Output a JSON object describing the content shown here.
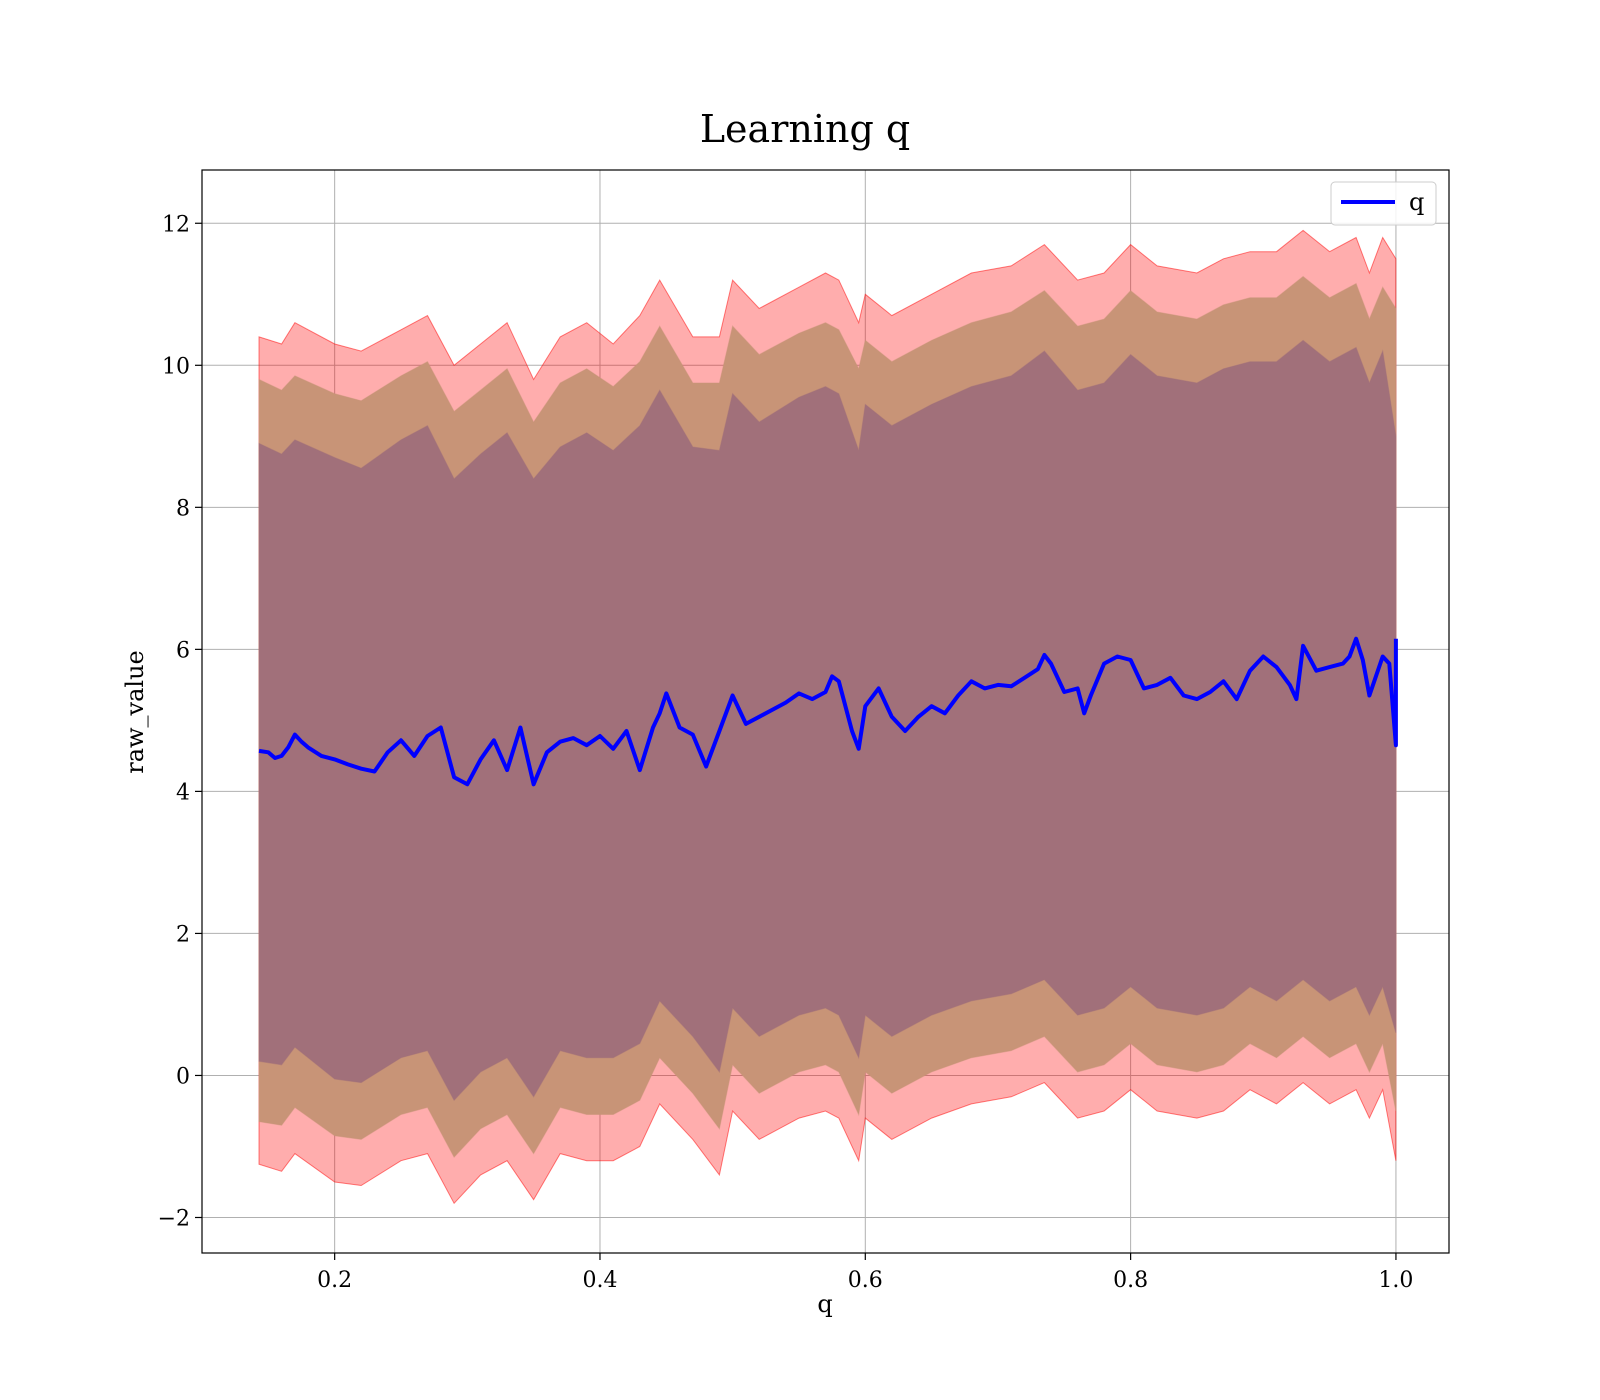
{
  "chart_data": {
    "type": "line",
    "title": "Learning q",
    "xlabel": "q",
    "ylabel": "raw_value",
    "xlim": [
      0.1,
      1.04
    ],
    "ylim": [
      -2.5,
      12.75
    ],
    "xticks": [
      0.2,
      0.4,
      0.6,
      0.8,
      1.0
    ],
    "xtick_labels": [
      "0.2",
      "0.4",
      "0.6",
      "0.8",
      "1.0"
    ],
    "yticks": [
      -2,
      0,
      2,
      4,
      6,
      8,
      10,
      12
    ],
    "ytick_labels": [
      "−2",
      "0",
      "2",
      "4",
      "6",
      "8",
      "10",
      "12"
    ],
    "grid": true,
    "legend_position": "top-right",
    "series": [
      {
        "name": "q",
        "color": "#0000ff",
        "x": [
          0.143,
          0.15,
          0.155,
          0.16,
          0.165,
          0.17,
          0.175,
          0.18,
          0.19,
          0.2,
          0.21,
          0.22,
          0.23,
          0.24,
          0.25,
          0.26,
          0.27,
          0.28,
          0.29,
          0.3,
          0.31,
          0.32,
          0.33,
          0.34,
          0.35,
          0.36,
          0.37,
          0.38,
          0.39,
          0.4,
          0.41,
          0.42,
          0.43,
          0.44,
          0.445,
          0.45,
          0.46,
          0.47,
          0.48,
          0.49,
          0.5,
          0.51,
          0.52,
          0.53,
          0.54,
          0.55,
          0.56,
          0.57,
          0.575,
          0.58,
          0.59,
          0.595,
          0.6,
          0.61,
          0.62,
          0.63,
          0.64,
          0.65,
          0.66,
          0.67,
          0.68,
          0.69,
          0.7,
          0.71,
          0.72,
          0.73,
          0.735,
          0.74,
          0.75,
          0.76,
          0.765,
          0.77,
          0.78,
          0.79,
          0.8,
          0.81,
          0.82,
          0.83,
          0.84,
          0.85,
          0.86,
          0.87,
          0.88,
          0.89,
          0.9,
          0.91,
          0.92,
          0.925,
          0.93,
          0.94,
          0.95,
          0.96,
          0.965,
          0.97,
          0.975,
          0.98,
          0.99,
          0.995,
          1.0,
          1.0
        ],
        "values": [
          4.57,
          4.55,
          4.47,
          4.5,
          4.62,
          4.8,
          4.7,
          4.62,
          4.5,
          4.45,
          4.38,
          4.32,
          4.28,
          4.55,
          4.72,
          4.5,
          4.78,
          4.9,
          4.2,
          4.1,
          4.45,
          4.72,
          4.3,
          4.9,
          4.1,
          4.55,
          4.7,
          4.75,
          4.65,
          4.78,
          4.6,
          4.85,
          4.3,
          4.9,
          5.1,
          5.38,
          4.9,
          4.8,
          4.35,
          4.85,
          5.35,
          4.95,
          5.05,
          5.15,
          5.25,
          5.38,
          5.3,
          5.4,
          5.62,
          5.55,
          4.85,
          4.6,
          5.2,
          5.45,
          5.05,
          4.85,
          5.05,
          5.2,
          5.1,
          5.35,
          5.55,
          5.45,
          5.5,
          5.48,
          5.6,
          5.72,
          5.92,
          5.8,
          5.4,
          5.45,
          5.1,
          5.35,
          5.8,
          5.9,
          5.85,
          5.45,
          5.5,
          5.6,
          5.35,
          5.3,
          5.4,
          5.55,
          5.3,
          5.7,
          5.9,
          5.75,
          5.5,
          5.3,
          6.05,
          5.7,
          5.75,
          5.8,
          5.9,
          6.15,
          5.85,
          5.35,
          5.9,
          5.8,
          4.65,
          6.15
        ]
      }
    ],
    "bands": [
      {
        "color": "#ff0000",
        "opacity": 0.32,
        "x": [
          0.143,
          0.16,
          0.17,
          0.2,
          0.22,
          0.25,
          0.27,
          0.29,
          0.31,
          0.33,
          0.35,
          0.37,
          0.39,
          0.41,
          0.43,
          0.445,
          0.47,
          0.49,
          0.5,
          0.52,
          0.55,
          0.57,
          0.58,
          0.595,
          0.6,
          0.62,
          0.65,
          0.68,
          0.71,
          0.735,
          0.76,
          0.78,
          0.8,
          0.82,
          0.85,
          0.87,
          0.89,
          0.91,
          0.93,
          0.95,
          0.97,
          0.98,
          0.99,
          1.0
        ],
        "upper": [
          10.4,
          10.3,
          10.6,
          10.3,
          10.2,
          10.5,
          10.7,
          10.0,
          10.3,
          10.6,
          9.8,
          10.4,
          10.6,
          10.3,
          10.7,
          11.2,
          10.4,
          10.4,
          11.2,
          10.8,
          11.1,
          11.3,
          11.2,
          10.6,
          11.0,
          10.7,
          11.0,
          11.3,
          11.4,
          11.7,
          11.2,
          11.3,
          11.7,
          11.4,
          11.3,
          11.5,
          11.6,
          11.6,
          11.9,
          11.6,
          11.8,
          11.3,
          11.8,
          11.5
        ],
        "lower": [
          -1.25,
          -1.35,
          -1.1,
          -1.5,
          -1.55,
          -1.2,
          -1.1,
          -1.8,
          -1.4,
          -1.2,
          -1.75,
          -1.1,
          -1.2,
          -1.2,
          -1.0,
          -0.4,
          -0.9,
          -1.4,
          -0.5,
          -0.9,
          -0.6,
          -0.5,
          -0.6,
          -1.2,
          -0.6,
          -0.9,
          -0.6,
          -0.4,
          -0.3,
          -0.1,
          -0.6,
          -0.5,
          -0.2,
          -0.5,
          -0.6,
          -0.5,
          -0.2,
          -0.4,
          -0.1,
          -0.4,
          -0.2,
          -0.6,
          -0.2,
          -1.2
        ]
      },
      {
        "color": "#c89477",
        "opacity": 1.0,
        "x": [
          0.143,
          0.16,
          0.17,
          0.2,
          0.22,
          0.25,
          0.27,
          0.29,
          0.31,
          0.33,
          0.35,
          0.37,
          0.39,
          0.41,
          0.43,
          0.445,
          0.47,
          0.49,
          0.5,
          0.52,
          0.55,
          0.57,
          0.58,
          0.595,
          0.6,
          0.62,
          0.65,
          0.68,
          0.71,
          0.735,
          0.76,
          0.78,
          0.8,
          0.82,
          0.85,
          0.87,
          0.89,
          0.91,
          0.93,
          0.95,
          0.97,
          0.98,
          0.99,
          1.0
        ],
        "upper": [
          9.8,
          9.65,
          9.85,
          9.6,
          9.5,
          9.85,
          10.05,
          9.35,
          9.65,
          9.95,
          9.2,
          9.75,
          9.95,
          9.7,
          10.05,
          10.55,
          9.75,
          9.75,
          10.55,
          10.15,
          10.45,
          10.6,
          10.5,
          9.95,
          10.35,
          10.05,
          10.35,
          10.6,
          10.75,
          11.05,
          10.55,
          10.65,
          11.05,
          10.75,
          10.65,
          10.85,
          10.95,
          10.95,
          11.25,
          10.95,
          11.15,
          10.65,
          11.1,
          10.8
        ],
        "lower": [
          -0.65,
          -0.7,
          -0.45,
          -0.85,
          -0.9,
          -0.55,
          -0.45,
          -1.15,
          -0.75,
          -0.55,
          -1.1,
          -0.45,
          -0.55,
          -0.55,
          -0.35,
          0.25,
          -0.25,
          -0.75,
          0.15,
          -0.25,
          0.05,
          0.15,
          0.05,
          -0.55,
          0.05,
          -0.25,
          0.05,
          0.25,
          0.35,
          0.55,
          0.05,
          0.15,
          0.45,
          0.15,
          0.05,
          0.15,
          0.45,
          0.25,
          0.55,
          0.25,
          0.45,
          0.05,
          0.45,
          -0.5
        ]
      },
      {
        "color": "#a1707a",
        "opacity": 1.0,
        "x": [
          0.143,
          0.16,
          0.17,
          0.2,
          0.22,
          0.25,
          0.27,
          0.29,
          0.31,
          0.33,
          0.35,
          0.37,
          0.39,
          0.41,
          0.43,
          0.445,
          0.47,
          0.49,
          0.5,
          0.52,
          0.55,
          0.57,
          0.58,
          0.595,
          0.6,
          0.62,
          0.65,
          0.68,
          0.71,
          0.735,
          0.76,
          0.78,
          0.8,
          0.82,
          0.85,
          0.87,
          0.89,
          0.91,
          0.93,
          0.95,
          0.97,
          0.98,
          0.99,
          1.0
        ],
        "upper": [
          8.9,
          8.75,
          8.95,
          8.7,
          8.55,
          8.95,
          9.15,
          8.4,
          8.75,
          9.05,
          8.4,
          8.85,
          9.05,
          8.8,
          9.15,
          9.65,
          8.85,
          8.8,
          9.6,
          9.2,
          9.55,
          9.7,
          9.6,
          8.8,
          9.45,
          9.15,
          9.45,
          9.7,
          9.85,
          10.2,
          9.65,
          9.75,
          10.15,
          9.85,
          9.75,
          9.95,
          10.05,
          10.05,
          10.35,
          10.05,
          10.25,
          9.75,
          10.2,
          9.0
        ],
        "lower": [
          0.2,
          0.15,
          0.4,
          -0.05,
          -0.1,
          0.25,
          0.35,
          -0.35,
          0.05,
          0.25,
          -0.3,
          0.35,
          0.25,
          0.25,
          0.45,
          1.05,
          0.55,
          0.05,
          0.95,
          0.55,
          0.85,
          0.95,
          0.85,
          0.25,
          0.85,
          0.55,
          0.85,
          1.05,
          1.15,
          1.35,
          0.85,
          0.95,
          1.25,
          0.95,
          0.85,
          0.95,
          1.25,
          1.05,
          1.35,
          1.05,
          1.25,
          0.85,
          1.25,
          0.6
        ]
      }
    ]
  }
}
